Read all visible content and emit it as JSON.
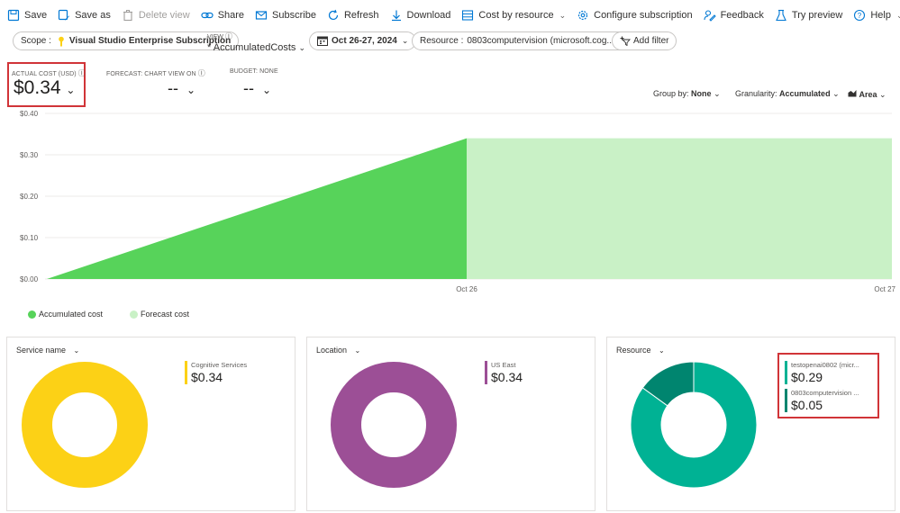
{
  "toolbar": {
    "save": "Save",
    "save_as": "Save as",
    "delete_view": "Delete view",
    "share": "Share",
    "subscribe": "Subscribe",
    "refresh": "Refresh",
    "download": "Download",
    "cost_by_resource": "Cost by resource",
    "configure_subscription": "Configure subscription",
    "feedback": "Feedback",
    "try_preview": "Try preview",
    "help": "Help"
  },
  "filters": {
    "scope_label": "Scope :",
    "scope_value": "Visual Studio Enterprise Subscription",
    "view_label": "VIEW",
    "view_name": "* AccumulatedCosts",
    "date_range": "Oct 26-27, 2024",
    "resource_label": "Resource :",
    "resource_value": "0803computervision (microsoft.cog...",
    "add_filter": "Add filter"
  },
  "kpis": {
    "actual_label": "ACTUAL COST (USD)",
    "actual_value": "$0.34",
    "forecast_label": "FORECAST: CHART VIEW ON",
    "forecast_value": "--",
    "budget_label": "BUDGET: NONE",
    "budget_value": "--"
  },
  "options": {
    "group_by_label": "Group by:",
    "group_by_value": "None",
    "granularity_label": "Granularity:",
    "granularity_value": "Accumulated",
    "chart_type": "Area"
  },
  "chart_data": {
    "type": "area",
    "y_ticks": [
      "$0.40",
      "$0.30",
      "$0.20",
      "$0.10",
      "$0.00"
    ],
    "ylim": [
      0,
      0.4
    ],
    "x_ticks": [
      "Oct 26",
      "Oct 27"
    ],
    "series": [
      {
        "name": "Accumulated cost",
        "color": "#57d35a",
        "points": [
          {
            "x": "start",
            "y": 0.0
          },
          {
            "x": "Oct 26",
            "y": 0.34
          }
        ]
      },
      {
        "name": "Forecast cost",
        "color": "#c9f1c6",
        "points": [
          {
            "x": "Oct 26",
            "y": 0.34
          },
          {
            "x": "Oct 27",
            "y": 0.34
          }
        ]
      }
    ],
    "grid": true
  },
  "legend": {
    "accumulated": "Accumulated cost",
    "forecast": "Forecast cost",
    "accumulated_color": "#57d35a",
    "forecast_color": "#c9f1c6"
  },
  "cards": [
    {
      "title": "Service name",
      "items": [
        {
          "name": "Cognitive Services",
          "value": "$0.34",
          "color": "#fcd116",
          "share": 1.0
        }
      ]
    },
    {
      "title": "Location",
      "items": [
        {
          "name": "US East",
          "value": "$0.34",
          "color": "#9c4f96",
          "share": 1.0
        }
      ]
    },
    {
      "title": "Resource",
      "items": [
        {
          "name": "testopenai0802 (micr...",
          "value": "$0.29",
          "color": "#00b294",
          "share": 0.85
        },
        {
          "name": "0803computervision ...",
          "value": "$0.05",
          "color": "#00856f",
          "share": 0.15
        }
      ]
    }
  ]
}
